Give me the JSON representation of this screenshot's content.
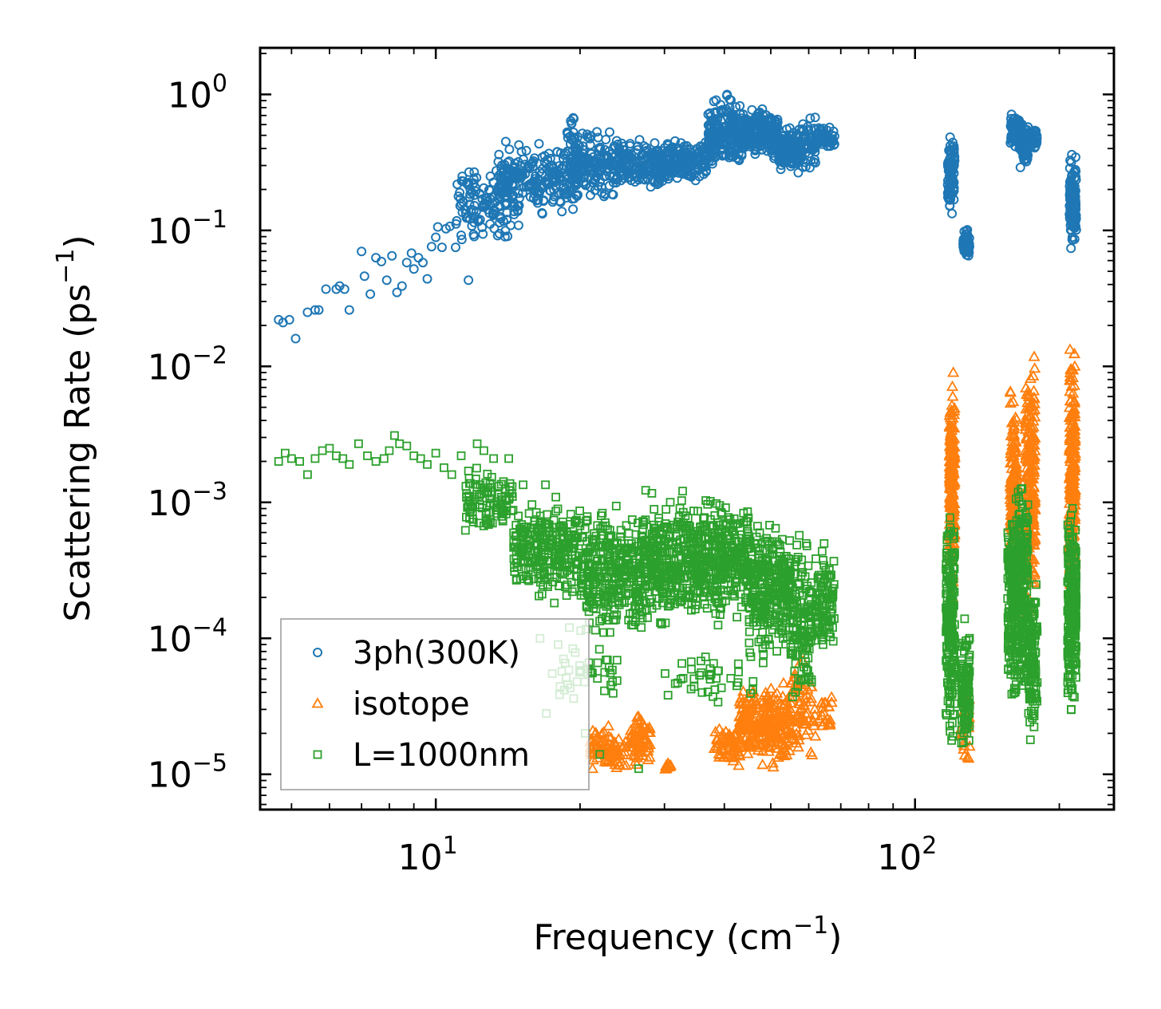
{
  "chart_data": {
    "type": "scatter",
    "title": "",
    "xlabel": "Frequency (cm",
    "xlabel_sup": "−1",
    "xlabel_tail": ")",
    "ylabel": "Scattering Rate (ps",
    "ylabel_sup": "−1",
    "ylabel_tail": ")",
    "xscale": "log",
    "yscale": "log",
    "xlim": [
      4.3,
      260
    ],
    "ylim": [
      5.5e-06,
      2.2
    ],
    "grid": false,
    "legend_position": "lower-left",
    "x_ticks": [
      {
        "value": 10,
        "base": "10",
        "exp": "1"
      },
      {
        "value": 100,
        "base": "10",
        "exp": "2"
      }
    ],
    "y_ticks": [
      {
        "value": 1,
        "base": "10",
        "exp": "0"
      },
      {
        "value": 0.1,
        "base": "10",
        "exp": "−1"
      },
      {
        "value": 0.01,
        "base": "10",
        "exp": "−2"
      },
      {
        "value": 0.001,
        "base": "10",
        "exp": "−3"
      },
      {
        "value": 0.0001,
        "base": "10",
        "exp": "−4"
      },
      {
        "value": 1e-05,
        "base": "10",
        "exp": "−5"
      }
    ],
    "series": [
      {
        "name": "3ph(300K)",
        "marker": "circle",
        "color": "#1f77b4",
        "points": [
          [
            4.7,
            0.022
          ],
          [
            4.8,
            0.021
          ],
          [
            4.95,
            0.022
          ],
          [
            5.1,
            0.016
          ],
          [
            5.4,
            0.025
          ],
          [
            5.6,
            0.026
          ],
          [
            5.7,
            0.026
          ],
          [
            5.9,
            0.037
          ],
          [
            6.2,
            0.037
          ],
          [
            6.3,
            0.039
          ],
          [
            6.45,
            0.037
          ],
          [
            6.6,
            0.026
          ],
          [
            7.0,
            0.07
          ],
          [
            7.1,
            0.046
          ],
          [
            7.3,
            0.034
          ],
          [
            7.5,
            0.063
          ],
          [
            7.7,
            0.059
          ],
          [
            7.9,
            0.043
          ],
          [
            8.1,
            0.065
          ],
          [
            8.3,
            0.035
          ],
          [
            8.5,
            0.039
          ],
          [
            8.7,
            0.058
          ],
          [
            8.9,
            0.068
          ],
          [
            9.0,
            0.052
          ],
          [
            9.2,
            0.063
          ],
          [
            9.4,
            0.058
          ],
          [
            9.6,
            0.044
          ],
          [
            9.8,
            0.076
          ],
          [
            10.0,
            0.089
          ],
          [
            10.1,
            0.106
          ],
          [
            10.3,
            0.075
          ],
          [
            10.5,
            0.103
          ],
          [
            10.7,
            0.107
          ],
          [
            11.0,
            0.075
          ],
          [
            11.3,
            0.092
          ],
          [
            11.7,
            0.043
          ],
          [
            12.0,
            0.14
          ],
          [
            12.5,
            0.17
          ],
          [
            13.0,
            0.25
          ],
          [
            13.5,
            0.32
          ],
          [
            14.0,
            0.45
          ]
        ],
        "clusters": [
          {
            "x_range": [
              11,
              15
            ],
            "y_range": [
              0.07,
              0.35
            ],
            "count": 130
          },
          {
            "x_range": [
              13.5,
              20
            ],
            "y_range": [
              0.12,
              0.5
            ],
            "count": 230
          },
          {
            "x_range": [
              19,
              24
            ],
            "y_range": [
              0.15,
              0.62
            ],
            "count": 160
          },
          {
            "x_range": [
              18.8,
              19.6
            ],
            "y_range": [
              0.3,
              0.78
            ],
            "count": 20
          },
          {
            "x_range": [
              24,
              30
            ],
            "y_range": [
              0.17,
              0.5
            ],
            "count": 160
          },
          {
            "x_range": [
              30,
              37
            ],
            "y_range": [
              0.2,
              0.52
            ],
            "count": 170
          },
          {
            "x_range": [
              37,
              44
            ],
            "y_range": [
              0.25,
              1.1
            ],
            "count": 230
          },
          {
            "x_range": [
              44,
              52
            ],
            "y_range": [
              0.3,
              0.9
            ],
            "count": 190
          },
          {
            "x_range": [
              52,
              58
            ],
            "y_range": [
              0.25,
              0.62
            ],
            "count": 160
          },
          {
            "x_range": [
              58,
              62
            ],
            "y_range": [
              0.25,
              0.75
            ],
            "count": 50
          },
          {
            "x_range": [
              62,
              68
            ],
            "y_range": [
              0.38,
              0.6
            ],
            "count": 70
          },
          {
            "x_range": [
              117,
              121
            ],
            "y_range": [
              0.12,
              0.6
            ],
            "count": 100
          },
          {
            "x_range": [
              126,
              130
            ],
            "y_range": [
              0.06,
              0.11
            ],
            "count": 60
          },
          {
            "x_range": [
              158,
              165
            ],
            "y_range": [
              0.38,
              0.8
            ],
            "count": 70
          },
          {
            "x_range": [
              165,
              172
            ],
            "y_range": [
              0.25,
              0.7
            ],
            "count": 70
          },
          {
            "x_range": [
              172,
              180
            ],
            "y_range": [
              0.38,
              0.6
            ],
            "count": 40
          },
          {
            "x_range": [
              210,
              217
            ],
            "y_range": [
              0.06,
              0.41
            ],
            "count": 120
          }
        ]
      },
      {
        "name": "isotope",
        "marker": "triangle",
        "color": "#ff7f0e",
        "points": [],
        "clusters": [
          {
            "x_range": [
              21,
              23
            ],
            "y_range": [
              1e-05,
              2.5e-05
            ],
            "count": 60
          },
          {
            "x_range": [
              23,
              25
            ],
            "y_range": [
              1e-05,
              2.1e-05
            ],
            "count": 40
          },
          {
            "x_range": [
              25.5,
              28
            ],
            "y_range": [
              1e-05,
              3.1e-05
            ],
            "count": 70
          },
          {
            "x_range": [
              30,
              31
            ],
            "y_range": [
              1e-05,
              1.3e-05
            ],
            "count": 12
          },
          {
            "x_range": [
              38,
              43
            ],
            "y_range": [
              1e-05,
              2.7e-05
            ],
            "count": 60
          },
          {
            "x_range": [
              43,
              55
            ],
            "y_range": [
              1e-05,
              5.5e-05
            ],
            "count": 260
          },
          {
            "x_range": [
              55,
              62
            ],
            "y_range": [
              1e-05,
              8e-05
            ],
            "count": 70
          },
          {
            "x_range": [
              63,
              67
            ],
            "y_range": [
              1.6e-05,
              5e-05
            ],
            "count": 20
          },
          {
            "x_range": [
              118,
              121
            ],
            "y_range": [
              0.00015,
              0.012
            ],
            "count": 200
          },
          {
            "x_range": [
              125,
              130
            ],
            "y_range": [
              1e-05,
              6e-05
            ],
            "count": 30
          },
          {
            "x_range": [
              158,
              163
            ],
            "y_range": [
              0.00015,
              0.0085
            ],
            "count": 200
          },
          {
            "x_range": [
              170,
              178
            ],
            "y_range": [
              0.0001,
              0.016
            ],
            "count": 230
          },
          {
            "x_range": [
              210,
              216
            ],
            "y_range": [
              0.0001,
              0.021
            ],
            "count": 230
          }
        ]
      },
      {
        "name": "L=1000nm",
        "marker": "square",
        "color": "#2ca02c",
        "points": [
          [
            4.7,
            0.002
          ],
          [
            4.85,
            0.0023
          ],
          [
            5.0,
            0.0021
          ],
          [
            5.2,
            0.002
          ],
          [
            5.4,
            0.0016
          ],
          [
            5.6,
            0.0021
          ],
          [
            5.8,
            0.0024
          ],
          [
            6.0,
            0.0025
          ],
          [
            6.2,
            0.0022
          ],
          [
            6.4,
            0.0021
          ],
          [
            6.6,
            0.0019
          ],
          [
            6.9,
            0.0027
          ],
          [
            7.2,
            0.0022
          ],
          [
            7.5,
            0.002
          ],
          [
            7.8,
            0.0021
          ],
          [
            8.0,
            0.0024
          ],
          [
            8.2,
            0.0031
          ],
          [
            8.4,
            0.0027
          ],
          [
            8.7,
            0.0026
          ],
          [
            9.0,
            0.0022
          ],
          [
            9.3,
            0.0021
          ],
          [
            9.6,
            0.0019
          ],
          [
            10.0,
            0.0023
          ],
          [
            10.4,
            0.0018
          ],
          [
            10.8,
            0.0016
          ],
          [
            11.3,
            0.0022
          ],
          [
            11.7,
            0.0017
          ],
          [
            12.2,
            0.0027
          ],
          [
            12.6,
            0.0024
          ],
          [
            13.2,
            0.0021
          ],
          [
            14.2,
            0.0021
          ],
          [
            16.5,
            0.0001
          ],
          [
            17.0,
            2.8e-05
          ],
          [
            17.5,
            5.5e-05
          ],
          [
            18.0,
            9e-05
          ],
          [
            19.0,
            0.00012
          ],
          [
            20.5,
            2e-05
          ],
          [
            22.0,
            1.4e-05
          ],
          [
            26.5,
            1.1e-05
          ]
        ],
        "clusters": [
          {
            "x_range": [
              11.5,
              14.5
            ],
            "y_range": [
              0.0005,
              0.0022
            ],
            "count": 100
          },
          {
            "x_range": [
              14.5,
              20
            ],
            "y_range": [
              0.00015,
              0.0014
            ],
            "count": 280
          },
          {
            "x_range": [
              20,
              27
            ],
            "y_range": [
              8e-05,
              0.0012
            ],
            "count": 320
          },
          {
            "x_range": [
              18,
              24
            ],
            "y_range": [
              3e-05,
              0.0001
            ],
            "count": 40
          },
          {
            "x_range": [
              27,
              35
            ],
            "y_range": [
              0.0001,
              0.0014
            ],
            "count": 320
          },
          {
            "x_range": [
              35,
              45
            ],
            "y_range": [
              0.00011,
              0.0013
            ],
            "count": 320
          },
          {
            "x_range": [
              45,
              55
            ],
            "y_range": [
              6e-05,
              0.00095
            ],
            "count": 300
          },
          {
            "x_range": [
              30,
              46
            ],
            "y_range": [
              3e-05,
              9e-05
            ],
            "count": 40
          },
          {
            "x_range": [
              55,
              61
            ],
            "y_range": [
              2.5e-05,
              0.0007
            ],
            "count": 130
          },
          {
            "x_range": [
              62,
              68
            ],
            "y_range": [
              5e-05,
              0.0007
            ],
            "count": 100
          },
          {
            "x_range": [
              116,
              121
            ],
            "y_range": [
              1.1e-05,
              0.0015
            ],
            "count": 220
          },
          {
            "x_range": [
              125,
              130
            ],
            "y_range": [
              1.1e-05,
              0.00016
            ],
            "count": 110
          },
          {
            "x_range": [
              156,
              164
            ],
            "y_range": [
              2.5e-05,
              0.0015
            ],
            "count": 200
          },
          {
            "x_range": [
              164,
              172
            ],
            "y_range": [
              2.5e-05,
              0.0025
            ],
            "count": 170
          },
          {
            "x_range": [
              172,
              180
            ],
            "y_range": [
              1.3e-05,
              0.0004
            ],
            "count": 130
          },
          {
            "x_range": [
              208,
              217
            ],
            "y_range": [
              1.9e-05,
              0.0013
            ],
            "count": 250
          }
        ]
      }
    ]
  }
}
